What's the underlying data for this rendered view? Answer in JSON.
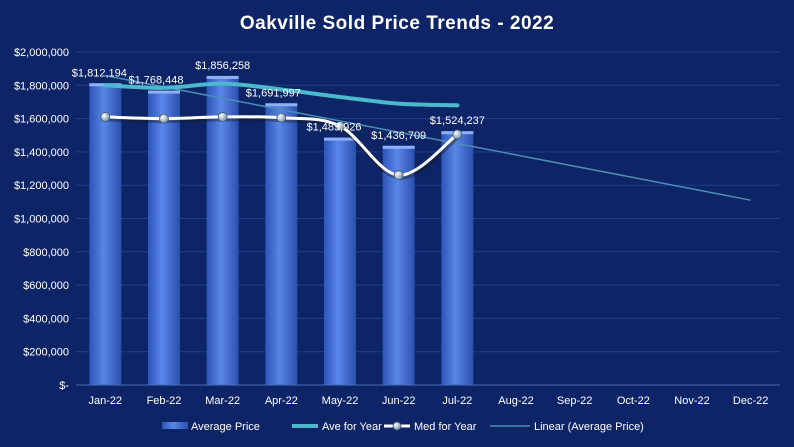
{
  "chart_data": {
    "type": "bar",
    "title": "Oakville  Sold  Price  Trends  - 2022",
    "categories": [
      "Jan-22",
      "Feb-22",
      "Mar-22",
      "Apr-22",
      "May-22",
      "Jun-22",
      "Jul-22",
      "Aug-22",
      "Sep-22",
      "Oct-22",
      "Nov-22",
      "Dec-22"
    ],
    "series": [
      {
        "name": "Average Price",
        "type": "bar",
        "color": "#3f6fd8",
        "values": [
          1812194,
          1768448,
          1856258,
          1691997,
          1485926,
          1436709,
          1524237,
          null,
          null,
          null,
          null,
          null
        ]
      },
      {
        "name": "Ave for Year",
        "type": "line",
        "color": "#4bb8cc",
        "values": [
          1800000,
          1785000,
          1810000,
          1775000,
          1730000,
          1690000,
          1680000,
          null,
          null,
          null,
          null,
          null
        ]
      },
      {
        "name": "Med for Year",
        "type": "line",
        "color": "#ffffff",
        "values": [
          1610000,
          1600000,
          1610000,
          1605000,
          1555000,
          1260000,
          1505000,
          null,
          null,
          null,
          null,
          null
        ]
      },
      {
        "name": "Linear (Average Price)",
        "type": "trendline",
        "color": "#4a8fb5",
        "values": [
          1858000,
          1790000,
          1722000,
          1654000,
          1586000,
          1518000,
          1450000,
          1382000,
          1314000,
          1246000,
          1178000,
          1110000
        ]
      }
    ],
    "data_labels": [
      "$1,812,194",
      "$1,768,448",
      "$1,856,258",
      "$1,691,997",
      "$1,485,926",
      "$1,436,709",
      "$1,524,237"
    ],
    "yticks": [
      "$-",
      "$200,000",
      "$400,000",
      "$600,000",
      "$800,000",
      "$1,000,000",
      "$1,200,000",
      "$1,400,000",
      "$1,600,000",
      "$1,800,000",
      "$2,000,000"
    ],
    "ylim": [
      0,
      2000000
    ],
    "grid": true,
    "legend": "bottom"
  }
}
